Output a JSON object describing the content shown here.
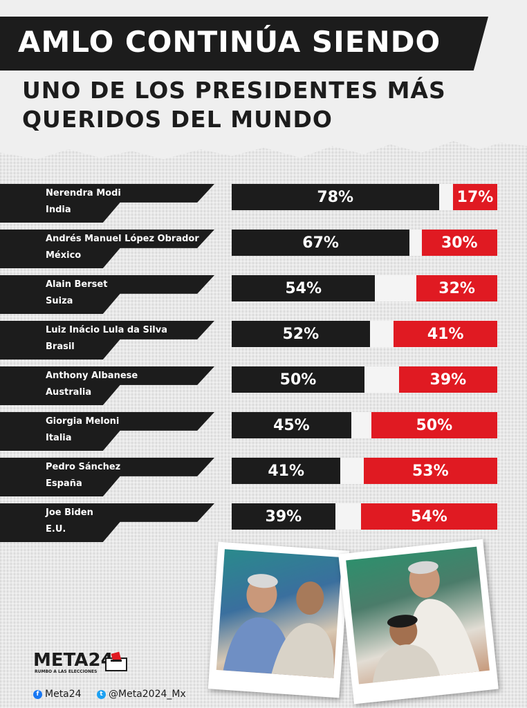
{
  "header": {
    "title": "AMLO CONTINÚA SIENDO",
    "subtitle_line1": "UNO DE LOS PRESIDENTES MÁS",
    "subtitle_line2": "QUERIDOS DEL MUNDO"
  },
  "colors": {
    "approve": "#1c1c1c",
    "disapprove": "#e01a22",
    "band": "#1c1c1c"
  },
  "chart_data": {
    "type": "bar",
    "categories": [
      "Nerendra Modi",
      "Andrés Manuel López Obrador",
      "Alain Berset",
      "Luiz Inácio Lula da Silva",
      "Anthony Albanese",
      "Giorgia Meloni",
      "Pedro Sánchez",
      "Joe Biden"
    ],
    "countries": [
      "India",
      "México",
      "Suiza",
      "Brasil",
      "Australia",
      "Italia",
      "España",
      "E.U."
    ],
    "series": [
      {
        "values": [
          78,
          67,
          54,
          52,
          50,
          45,
          41,
          39
        ],
        "labels": [
          "78%",
          "67%",
          "54%",
          "52%",
          "50%",
          "45%",
          "41%",
          "39%"
        ]
      },
      {
        "values": [
          17,
          30,
          32,
          41,
          39,
          50,
          53,
          54
        ],
        "labels": [
          "17%",
          "30%",
          "32%",
          "41%",
          "39%",
          "50%",
          "53%",
          "54%"
        ]
      }
    ],
    "ylim": [
      0,
      100
    ]
  },
  "footer": {
    "logo": "META24",
    "logo_tag": "RUMBO A LAS ELECCIONES",
    "facebook": "Meta24",
    "twitter": "@Meta2024_Mx",
    "facebook_icon": "facebook-icon",
    "twitter_icon": "twitter-icon"
  }
}
